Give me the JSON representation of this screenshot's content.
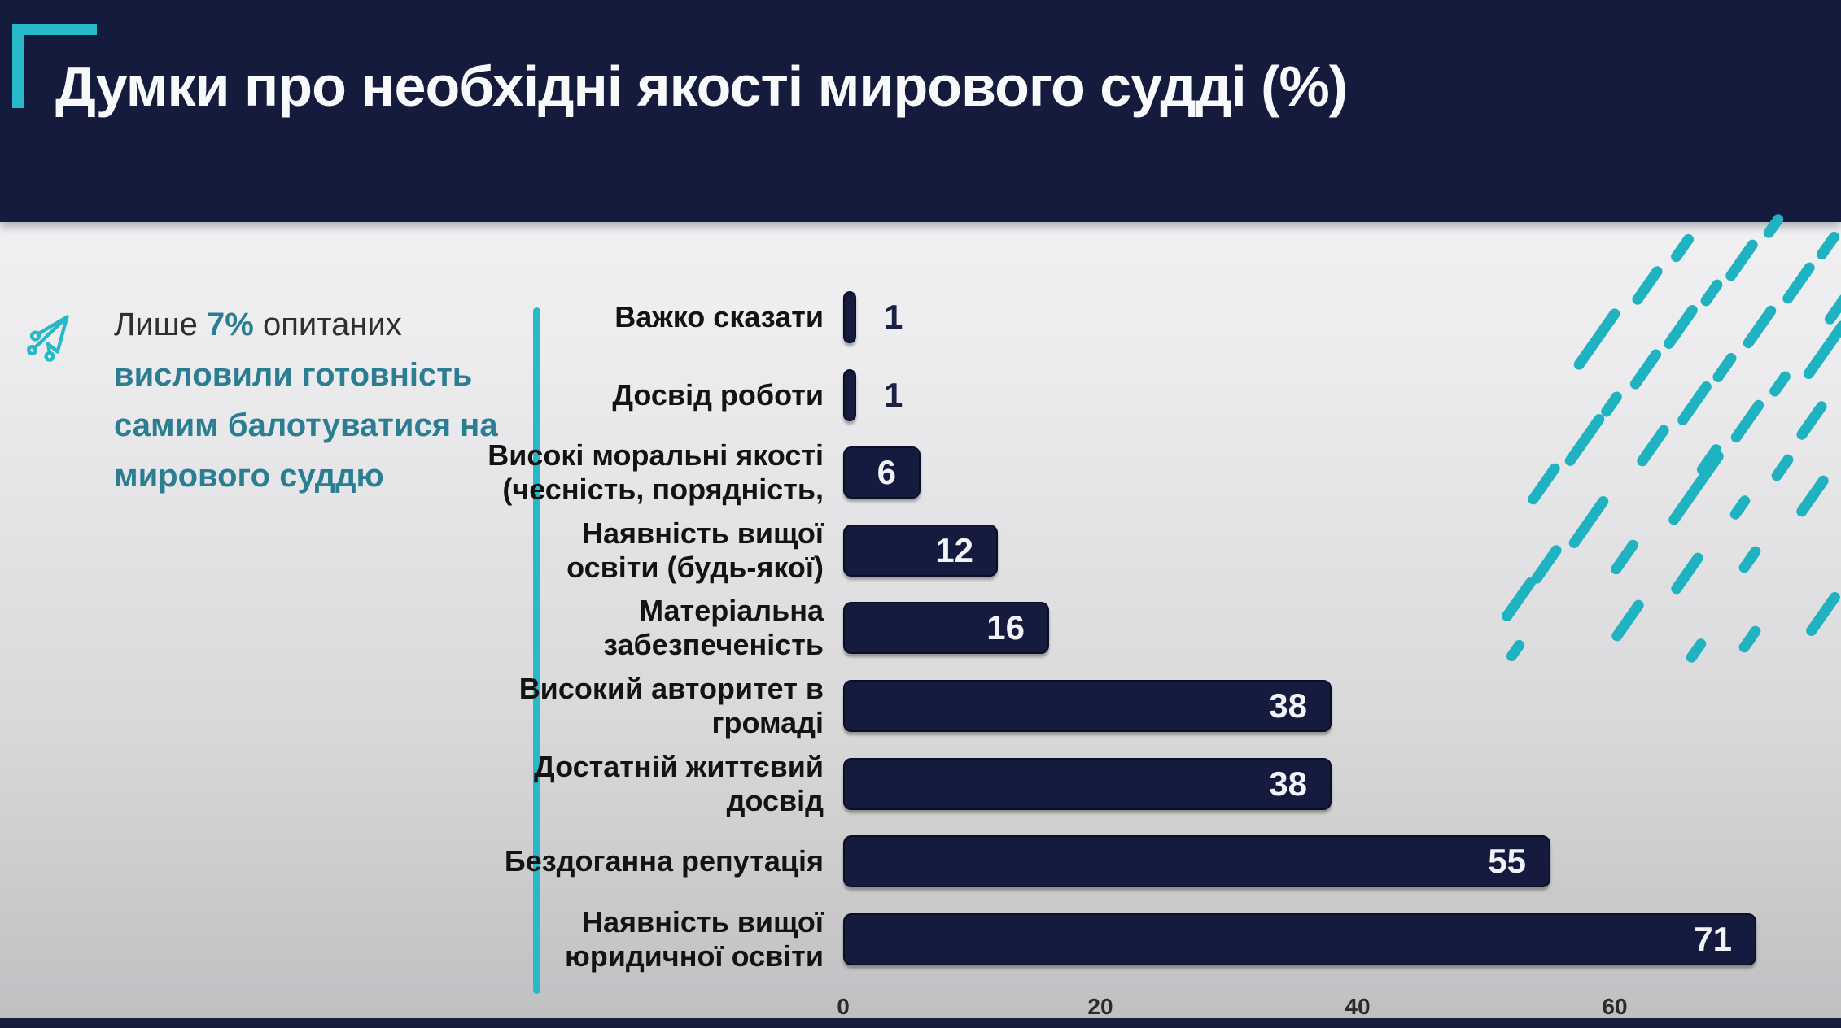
{
  "header": {
    "title": "Думки про необхідні якості мирового судді (%)"
  },
  "side_note": {
    "line1_prefix": "Лише ",
    "line1_highlight": "7%",
    "line1_suffix": " опитаних",
    "line2": "висловили готовність",
    "line3": "самим балотуватися на",
    "line4": "мирового суддю"
  },
  "chart_data": {
    "type": "bar",
    "orientation": "horizontal",
    "title": "Думки про необхідні якості мирового судді (%)",
    "categories": [
      "Важко сказати",
      "Досвід роботи",
      "Високі моральні якості\n(чесність, порядність,",
      "Наявність вищої\nосвіти (будь-якої)",
      "Матеріальна\nзабезпеченість",
      "Високий авторитет в\nгромаді",
      "Достатній життєвий\nдосвід",
      "Бездоганна репутація",
      "Наявність вищої\nюридичної освіти"
    ],
    "values": [
      1,
      1,
      6,
      12,
      16,
      38,
      38,
      55,
      71
    ],
    "xlabel": "",
    "ylabel": "",
    "xticks": [
      0,
      20,
      40,
      60,
      80
    ],
    "xlim": [
      0,
      80
    ],
    "grid": false,
    "legend": false,
    "value_labels": "shown at bar ends, inside bar when bar is long enough, outside for value 1"
  },
  "colors": {
    "header_bg": "#141b3c",
    "accent_teal": "#27b9c8",
    "dash_teal": "#1fb3c1",
    "note_teal": "#2b7d92",
    "bar_fill": "#141b3e",
    "value_inside": "#f2f3f8",
    "value_outside": "#1b2145",
    "bottom_strip": "#161d3d"
  }
}
